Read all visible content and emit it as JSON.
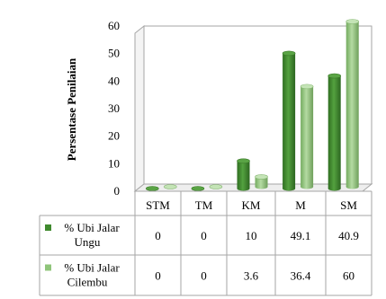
{
  "chart_data": {
    "type": "bar",
    "title": "",
    "xlabel": "",
    "ylabel": "Persentase Penilaian",
    "ylim": [
      0,
      60
    ],
    "yticks": [
      0,
      10,
      20,
      30,
      40,
      50,
      60
    ],
    "categories": [
      "STM",
      "TM",
      "KM",
      "M",
      "SM"
    ],
    "series": [
      {
        "name": "% Ubi Jalar Ungu",
        "values": [
          0,
          0,
          10,
          49.1,
          40.9
        ],
        "color": "#3f8a2e"
      },
      {
        "name": "% Ubi Jalar Cilembu",
        "values": [
          0,
          0,
          3.6,
          36.4,
          60
        ],
        "color": "#8fc57a"
      }
    ],
    "legend_placement": "data-table",
    "grid": false,
    "style": "3d-cylinder"
  }
}
